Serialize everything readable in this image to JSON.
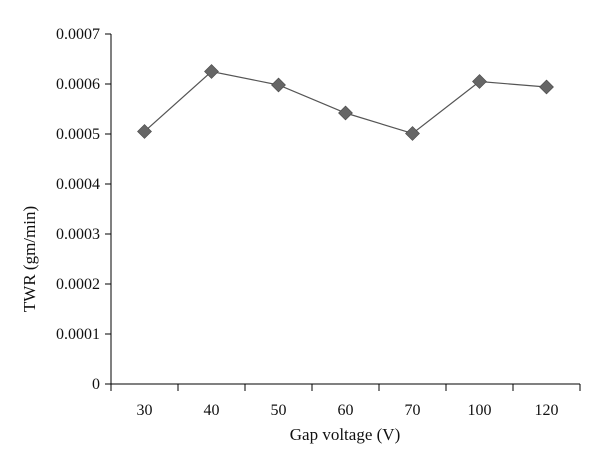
{
  "chart_data": {
    "type": "line",
    "xlabel": "Gap voltage (V)",
    "ylabel": "TWR (gm/min)",
    "categories": [
      "30",
      "40",
      "50",
      "60",
      "70",
      "100",
      "120"
    ],
    "series": [
      {
        "values": [
          0.000505,
          0.000625,
          0.000598,
          0.000542,
          0.000501,
          0.000605,
          0.000594
        ]
      }
    ],
    "ylim": [
      0,
      0.0007
    ],
    "yticks": [
      "0",
      "0.0001",
      "0.0002",
      "0.0003",
      "0.0004",
      "0.0005",
      "0.0006",
      "0.0007"
    ],
    "grid": false,
    "legend": "none",
    "colors": {
      "line": "#555555",
      "marker": "#666666",
      "axis": "#000000"
    },
    "marker": "diamond"
  }
}
